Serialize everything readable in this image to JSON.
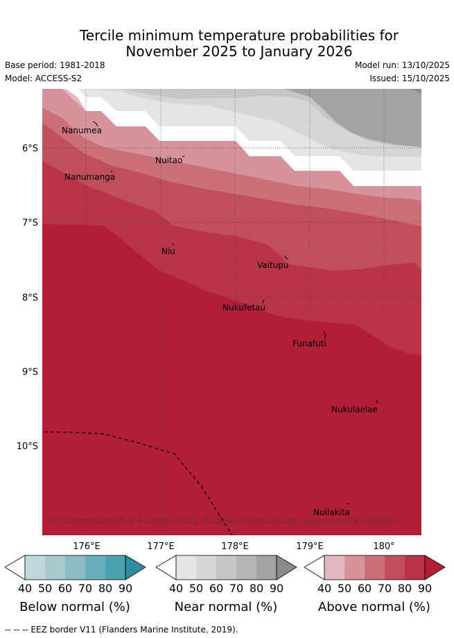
{
  "header": {
    "title_line1": "Tercile minimum temperature probabilities for",
    "title_line2": "November 2025 to January 2026",
    "base_period": "Base period: 1981-2018",
    "model": "Model: ACCESS-S2",
    "model_run": "Model run: 13/10/2025",
    "issued": "Issued: 15/10/2025"
  },
  "map": {
    "lon_ticks": [
      "176°E",
      "177°E",
      "178°E",
      "179°E",
      "180°"
    ],
    "lat_ticks": [
      "6°S",
      "7°S",
      "8°S",
      "9°S",
      "10°S"
    ],
    "places": [
      {
        "name": "Nanumea"
      },
      {
        "name": "Nanumanga"
      },
      {
        "name": "Nuitao"
      },
      {
        "name": "Niu"
      },
      {
        "name": "Vaitupu"
      },
      {
        "name": "Nukufetau"
      },
      {
        "name": "Funafuti"
      },
      {
        "name": "Nukulaelae"
      },
      {
        "name": "Nuilakita"
      }
    ],
    "copyright": "© Commonwealth of Australia 2025, Bureau of Meteorology, supported by COSPPac",
    "colors": {
      "above_40": "#e2b9c0",
      "above_50": "#d6939c",
      "above_60": "#cb7078",
      "above_70": "#c04f5b",
      "above_80": "#b93448",
      "above_90": "#b21e38",
      "near_40": "#e5e5e5",
      "near_50": "#d6d6d6",
      "near_60": "#c6c6c6",
      "near_70": "#b6b6b6",
      "near_80": "#a3a3a3",
      "near_90": "#8c8c8c",
      "below_40": "#c0d7dd",
      "below_50": "#a8cace",
      "below_60": "#8dbac3",
      "below_70": "#6baebb",
      "below_80": "#4aa2b0",
      "below_90": "#2e8d9e"
    }
  },
  "legends": [
    {
      "title": "Below normal (%)",
      "ticks": [
        "40",
        "50",
        "60",
        "70",
        "80",
        "90"
      ]
    },
    {
      "title": "Near normal (%)",
      "ticks": [
        "40",
        "50",
        "60",
        "70",
        "80",
        "90"
      ]
    },
    {
      "title": "Above normal (%)",
      "ticks": [
        "40",
        "50",
        "60",
        "70",
        "80",
        "90"
      ]
    }
  ],
  "footnote": "--  --  -- EEZ border V11 (Flanders Marine Institute, 2019)."
}
